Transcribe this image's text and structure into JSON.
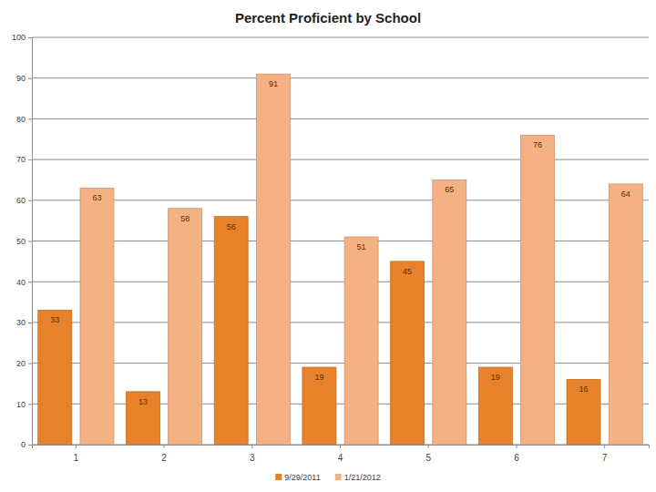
{
  "chart_data": {
    "type": "bar",
    "title": "Percent Proficient by School",
    "categories": [
      "1",
      "2",
      "3",
      "4",
      "5",
      "6",
      "7"
    ],
    "series": [
      {
        "name": "9/29/2011",
        "color": "#e8822a",
        "values": [
          33,
          13,
          56,
          19,
          45,
          19,
          16
        ]
      },
      {
        "name": "1/21/2012",
        "color": "#f4b183",
        "values": [
          63,
          58,
          91,
          51,
          65,
          76,
          64
        ]
      }
    ],
    "ylim": [
      0,
      100
    ],
    "yticks": [
      0,
      10,
      20,
      30,
      40,
      50,
      60,
      70,
      80,
      90,
      100
    ],
    "grid": true,
    "legend": "bottom",
    "data_labels": true
  }
}
